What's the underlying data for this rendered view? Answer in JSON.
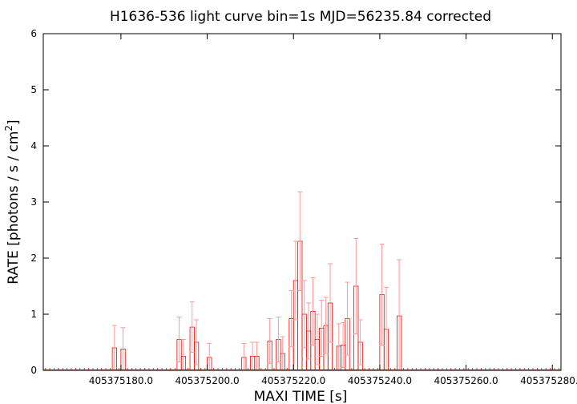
{
  "chart_data": {
    "type": "bar",
    "title": "H1636-536 light curve bin=1s MJD=56235.84 corrected",
    "xlabel": "MAXI TIME [s]",
    "ylabel": "RATE [photons / s / cm",
    "ylabel_sup": "2",
    "ylabel_end": "]",
    "xlim": [
      405375162,
      405375282
    ],
    "ylim": [
      0,
      6
    ],
    "xticks": [
      {
        "value": 405375180,
        "label": "405375180.0"
      },
      {
        "value": 405375200,
        "label": "405375200.0"
      },
      {
        "value": 405375220,
        "label": "405375220.0"
      },
      {
        "value": 405375240,
        "label": "405375240.0"
      },
      {
        "value": 405375260,
        "label": "405375260.0"
      },
      {
        "value": 405375280,
        "label": "405375280.0"
      }
    ],
    "yticks": [
      {
        "value": 0,
        "label": "0"
      },
      {
        "value": 1,
        "label": "1"
      },
      {
        "value": 2,
        "label": "2"
      },
      {
        "value": 3,
        "label": "3"
      },
      {
        "value": 4,
        "label": "4"
      },
      {
        "value": 5,
        "label": "5"
      },
      {
        "value": 6,
        "label": "6"
      }
    ],
    "bin_width": 1,
    "grid": false,
    "colors": {
      "bar": "#ff0000",
      "errorbar": "#ff9999",
      "frame": "#000000"
    },
    "points": [
      {
        "x": 405375178.5,
        "y": 0.4,
        "err": 0.4
      },
      {
        "x": 405375180.5,
        "y": 0.38,
        "err": 0.38
      },
      {
        "x": 405375193.5,
        "y": 0.55,
        "err": 0.4
      },
      {
        "x": 405375194.5,
        "y": 0.25,
        "err": 0.3
      },
      {
        "x": 405375196.5,
        "y": 0.77,
        "err": 0.45
      },
      {
        "x": 405375197.5,
        "y": 0.5,
        "err": 0.4
      },
      {
        "x": 405375200.5,
        "y": 0.23,
        "err": 0.25
      },
      {
        "x": 405375208.5,
        "y": 0.23,
        "err": 0.25
      },
      {
        "x": 405375210.5,
        "y": 0.25,
        "err": 0.25
      },
      {
        "x": 405375211.5,
        "y": 0.25,
        "err": 0.25
      },
      {
        "x": 405375214.5,
        "y": 0.52,
        "err": 0.4
      },
      {
        "x": 405375216.5,
        "y": 0.55,
        "err": 0.4
      },
      {
        "x": 405375217.5,
        "y": 0.3,
        "err": 0.3
      },
      {
        "x": 405375219.5,
        "y": 0.92,
        "err": 0.5
      },
      {
        "x": 405375220.5,
        "y": 1.6,
        "err": 0.7
      },
      {
        "x": 405375221.5,
        "y": 2.3,
        "err": 0.88
      },
      {
        "x": 405375222.5,
        "y": 1.0,
        "err": 0.6
      },
      {
        "x": 405375223.5,
        "y": 0.7,
        "err": 0.5
      },
      {
        "x": 405375224.5,
        "y": 1.05,
        "err": 0.6
      },
      {
        "x": 405375225.5,
        "y": 0.55,
        "err": 0.45
      },
      {
        "x": 405375226.5,
        "y": 0.75,
        "err": 0.5
      },
      {
        "x": 405375227.5,
        "y": 0.8,
        "err": 0.5
      },
      {
        "x": 405375228.5,
        "y": 1.2,
        "err": 0.7
      },
      {
        "x": 405375230.5,
        "y": 0.43,
        "err": 0.4
      },
      {
        "x": 405375231.5,
        "y": 0.45,
        "err": 0.4
      },
      {
        "x": 405375232.5,
        "y": 0.92,
        "err": 0.65
      },
      {
        "x": 405375234.5,
        "y": 1.5,
        "err": 0.85
      },
      {
        "x": 405375235.5,
        "y": 0.5,
        "err": 0.4
      },
      {
        "x": 405375240.5,
        "y": 1.35,
        "err": 0.9
      },
      {
        "x": 405375241.5,
        "y": 0.73,
        "err": 0.75
      },
      {
        "x": 405375244.5,
        "y": 0.97,
        "err": 1.0
      }
    ]
  }
}
